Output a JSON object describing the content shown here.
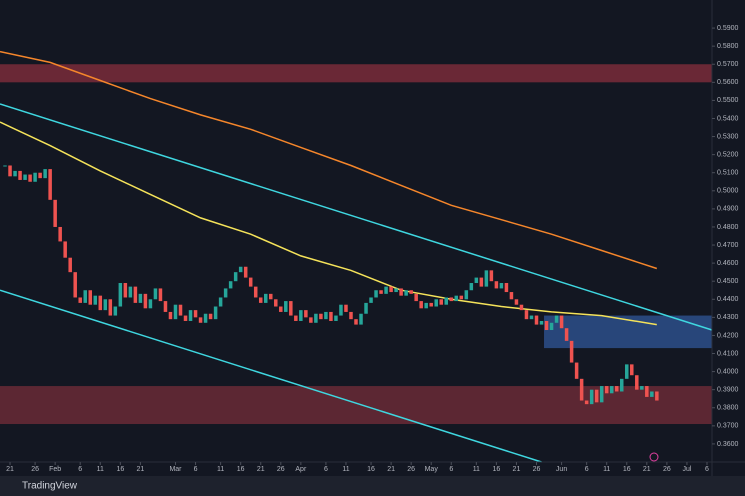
{
  "chart_data": {
    "type": "candlestick",
    "brand": "TradingView",
    "xlim": [
      -1,
      141
    ],
    "ylim": [
      0.35,
      0.6
    ],
    "grid": false,
    "up_color": "#26a69a",
    "down_color": "#ef5350",
    "closes": [
      0.514,
      0.508,
      0.511,
      0.506,
      0.509,
      0.505,
      0.51,
      0.507,
      0.512,
      0.495,
      0.48,
      0.472,
      0.463,
      0.455,
      0.441,
      0.438,
      0.445,
      0.437,
      0.442,
      0.434,
      0.44,
      0.431,
      0.436,
      0.449,
      0.441,
      0.447,
      0.438,
      0.443,
      0.435,
      0.44,
      0.446,
      0.439,
      0.433,
      0.429,
      0.437,
      0.431,
      0.428,
      0.434,
      0.43,
      0.427,
      0.432,
      0.429,
      0.436,
      0.441,
      0.446,
      0.45,
      0.455,
      0.458,
      0.452,
      0.447,
      0.441,
      0.438,
      0.443,
      0.44,
      0.436,
      0.433,
      0.439,
      0.431,
      0.428,
      0.434,
      0.43,
      0.427,
      0.432,
      0.429,
      0.433,
      0.428,
      0.431,
      0.437,
      0.433,
      0.429,
      0.426,
      0.432,
      0.438,
      0.441,
      0.445,
      0.443,
      0.447,
      0.444,
      0.446,
      0.442,
      0.445,
      0.443,
      0.439,
      0.435,
      0.438,
      0.436,
      0.44,
      0.437,
      0.441,
      0.439,
      0.442,
      0.44,
      0.445,
      0.449,
      0.452,
      0.447,
      0.456,
      0.45,
      0.446,
      0.449,
      0.444,
      0.44,
      0.437,
      0.434,
      0.429,
      0.431,
      0.426,
      0.428,
      0.423,
      0.427,
      0.431,
      0.424,
      0.417,
      0.405,
      0.396,
      0.384,
      0.382,
      0.39,
      0.383,
      0.392,
      0.388,
      0.392,
      0.389,
      0.396,
      0.404,
      0.398,
      0.39,
      0.392,
      0.386,
      0.389,
      0.384
    ],
    "lines": [
      {
        "color": "#f5e35a",
        "x": [
          -1,
          9,
          19,
          29,
          39,
          49,
          59,
          69,
          79,
          89,
          99,
          109,
          119,
          130
        ],
        "values": [
          0.538,
          0.525,
          0.511,
          0.498,
          0.485,
          0.476,
          0.464,
          0.456,
          0.445,
          0.44,
          0.436,
          0.433,
          0.431,
          0.426
        ]
      },
      {
        "color": "#f5862b",
        "x": [
          -1,
          9,
          19,
          29,
          39,
          49,
          59,
          69,
          79,
          89,
          99,
          109,
          119,
          130
        ],
        "values": [
          0.577,
          0.571,
          0.561,
          0.551,
          0.542,
          0.534,
          0.524,
          0.514,
          0.503,
          0.492,
          0.484,
          0.476,
          0.467,
          0.457
        ]
      },
      {
        "color": "#3fd7e0",
        "x": [
          -1,
          141
        ],
        "values": [
          0.548,
          0.423
        ]
      },
      {
        "color": "#3fd7e0",
        "x": [
          -1,
          107
        ],
        "values": [
          0.445,
          0.35
        ]
      }
    ],
    "zones": [
      {
        "color": "#7a2c3a",
        "x": [
          -1,
          141
        ],
        "range": [
          0.56,
          0.57
        ]
      },
      {
        "color": "#6a2a36",
        "x": [
          -1,
          141
        ],
        "range": [
          0.371,
          0.392
        ]
      },
      {
        "color": "#2d4f8a",
        "x": [
          107.5,
          141
        ],
        "range": [
          0.413,
          0.431
        ]
      }
    ],
    "yticks": [
      {
        "value": 0.36,
        "label": "0.3600"
      },
      {
        "value": 0.37,
        "label": "0.3700"
      },
      {
        "value": 0.38,
        "label": "0.3800"
      },
      {
        "value": 0.39,
        "label": "0.3900"
      },
      {
        "value": 0.4,
        "label": "0.4000"
      },
      {
        "value": 0.41,
        "label": "0.4100"
      },
      {
        "value": 0.42,
        "label": "0.4200"
      },
      {
        "value": 0.43,
        "label": "0.4300"
      },
      {
        "value": 0.44,
        "label": "0.4400"
      },
      {
        "value": 0.45,
        "label": "0.4500"
      },
      {
        "value": 0.46,
        "label": "0.4600"
      },
      {
        "value": 0.47,
        "label": "0.4700"
      },
      {
        "value": 0.48,
        "label": "0.4800"
      },
      {
        "value": 0.49,
        "label": "0.4900"
      },
      {
        "value": 0.5,
        "label": "0.5000"
      },
      {
        "value": 0.51,
        "label": "0.5100"
      },
      {
        "value": 0.52,
        "label": "0.5200"
      },
      {
        "value": 0.53,
        "label": "0.5300"
      },
      {
        "value": 0.54,
        "label": "0.5400"
      },
      {
        "value": 0.55,
        "label": "0.5500"
      },
      {
        "value": 0.56,
        "label": "0.5600"
      },
      {
        "value": 0.57,
        "label": "0.5700"
      },
      {
        "value": 0.58,
        "label": "0.5800"
      },
      {
        "value": 0.59,
        "label": "0.5900"
      }
    ],
    "xticks": [
      {
        "value": 1,
        "label": "21"
      },
      {
        "value": 6,
        "label": "26"
      },
      {
        "value": 10,
        "label": "Feb"
      },
      {
        "value": 15,
        "label": "6"
      },
      {
        "value": 19,
        "label": "11"
      },
      {
        "value": 23,
        "label": "16"
      },
      {
        "value": 27,
        "label": "21"
      },
      {
        "value": 34,
        "label": "Mar"
      },
      {
        "value": 38,
        "label": "6"
      },
      {
        "value": 43,
        "label": "11"
      },
      {
        "value": 47,
        "label": "16"
      },
      {
        "value": 51,
        "label": "21"
      },
      {
        "value": 55,
        "label": "26"
      },
      {
        "value": 59,
        "label": "Apr"
      },
      {
        "value": 64,
        "label": "6"
      },
      {
        "value": 68,
        "label": "11"
      },
      {
        "value": 73,
        "label": "16"
      },
      {
        "value": 77,
        "label": "21"
      },
      {
        "value": 81,
        "label": "26"
      },
      {
        "value": 85,
        "label": "May"
      },
      {
        "value": 89,
        "label": "6"
      },
      {
        "value": 94,
        "label": "11"
      },
      {
        "value": 98,
        "label": "16"
      },
      {
        "value": 102,
        "label": "21"
      },
      {
        "value": 106,
        "label": "26"
      },
      {
        "value": 111,
        "label": "Jun"
      },
      {
        "value": 116,
        "label": "6"
      },
      {
        "value": 120,
        "label": "11"
      },
      {
        "value": 124,
        "label": "16"
      },
      {
        "value": 128,
        "label": "21"
      },
      {
        "value": 132,
        "label": "26"
      },
      {
        "value": 136,
        "label": "Jul"
      },
      {
        "value": 140,
        "label": "6"
      }
    ]
  }
}
